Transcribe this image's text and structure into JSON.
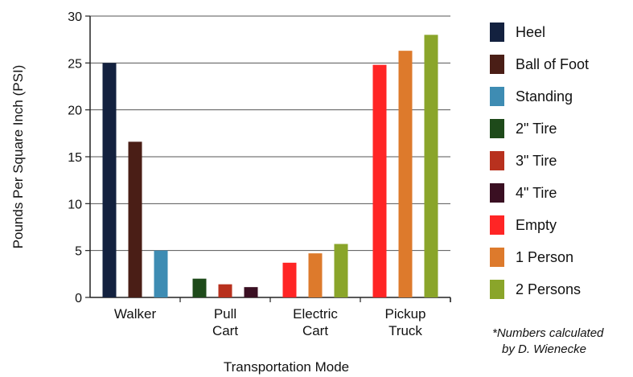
{
  "chart_data": {
    "type": "bar",
    "xlabel": "Transportation Mode",
    "ylabel": "Pounds Per Square Inch (PSI)",
    "ylim": [
      0,
      30
    ],
    "yticks": [
      0,
      5,
      10,
      15,
      20,
      25,
      30
    ],
    "grid": true,
    "legend_position": "right",
    "series": [
      {
        "name": "Heel",
        "color": "#13213f"
      },
      {
        "name": "Ball of Foot",
        "color": "#4a1e16"
      },
      {
        "name": "Standing",
        "color": "#3e8cb3"
      },
      {
        "name": "2\" Tire",
        "color": "#1e4a1a"
      },
      {
        "name": "3\" Tire",
        "color": "#b8311e"
      },
      {
        "name": "4\" Tire",
        "color": "#3a0f22"
      },
      {
        "name": "Empty",
        "color": "#ff2525"
      },
      {
        "name": "1 Person",
        "color": "#dd7a2c"
      },
      {
        "name": "2 Persons",
        "color": "#8aa52a"
      }
    ],
    "groups": [
      {
        "label_lines": [
          "Walker"
        ],
        "bars": [
          {
            "series": 0,
            "value": 25.0
          },
          {
            "series": 1,
            "value": 16.6
          },
          {
            "series": 2,
            "value": 5.0
          }
        ]
      },
      {
        "label_lines": [
          "Pull",
          "Cart"
        ],
        "bars": [
          {
            "series": 3,
            "value": 2.0
          },
          {
            "series": 4,
            "value": 1.4
          },
          {
            "series": 5,
            "value": 1.1
          }
        ]
      },
      {
        "label_lines": [
          "Electric",
          "Cart"
        ],
        "bars": [
          {
            "series": 6,
            "value": 3.7
          },
          {
            "series": 7,
            "value": 4.7
          },
          {
            "series": 8,
            "value": 5.7
          }
        ]
      },
      {
        "label_lines": [
          "Pickup",
          "Truck"
        ],
        "bars": [
          {
            "series": 6,
            "value": 24.8
          },
          {
            "series": 7,
            "value": 26.3
          },
          {
            "series": 8,
            "value": 28.0
          }
        ]
      }
    ]
  },
  "footnote": {
    "line1": "*Numbers calculated",
    "line2": "by D. Wienecke"
  }
}
